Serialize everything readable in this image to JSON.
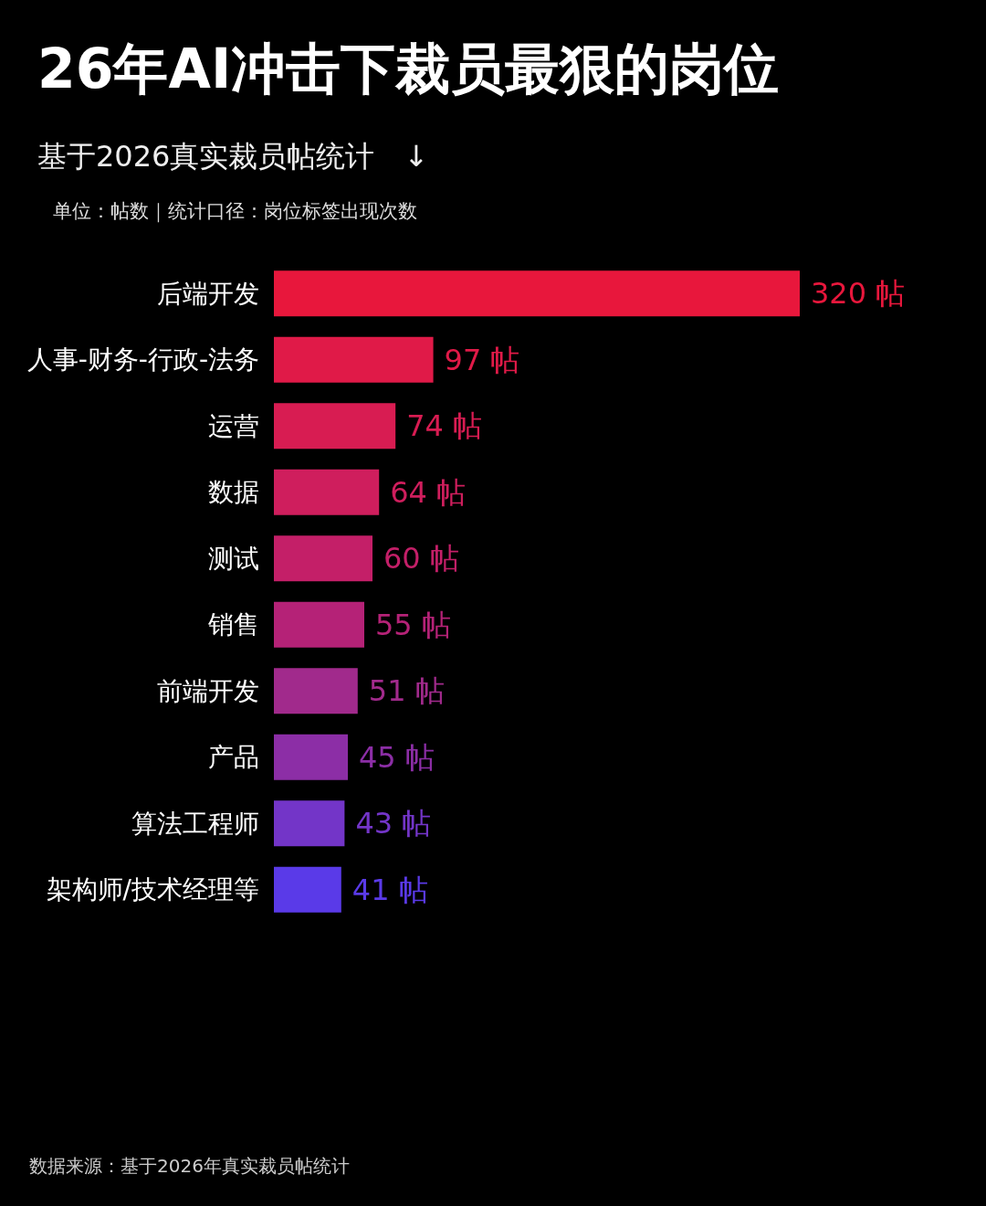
{
  "chart_data": {
    "type": "bar",
    "orientation": "horizontal",
    "title": "26年AI冲击下裁员最狠的岗位",
    "subtitle": "基于2026真实裁员帖统计　↓",
    "categories": [
      "后端开发",
      "人事-财务-行政-法务",
      "运营",
      "数据",
      "测试",
      "销售",
      "前端开发",
      "产品",
      "算法工程师",
      "架构师/技术经理等"
    ],
    "values": [
      320,
      97,
      74,
      64,
      60,
      55,
      51,
      45,
      43,
      41
    ],
    "value_labels": [
      "320 帖",
      "97 帖",
      "74 帖",
      "64 帖",
      "60 帖",
      "55 帖",
      "51 帖",
      "45 帖",
      "43 帖",
      "41 帖"
    ],
    "colors": [
      "#e8173c",
      "#e01a48",
      "#d81c52",
      "#cf1e5d",
      "#c41f68",
      "#b52277",
      "#a12a8c",
      "#8c2ea6",
      "#7335c8",
      "#5a3ae8"
    ],
    "annotations": [
      "单位：帖数｜统计口径：岗位标签出现次数",
      "数据来源：基于2026年真实裁员帖统计"
    ],
    "grid": false
  }
}
